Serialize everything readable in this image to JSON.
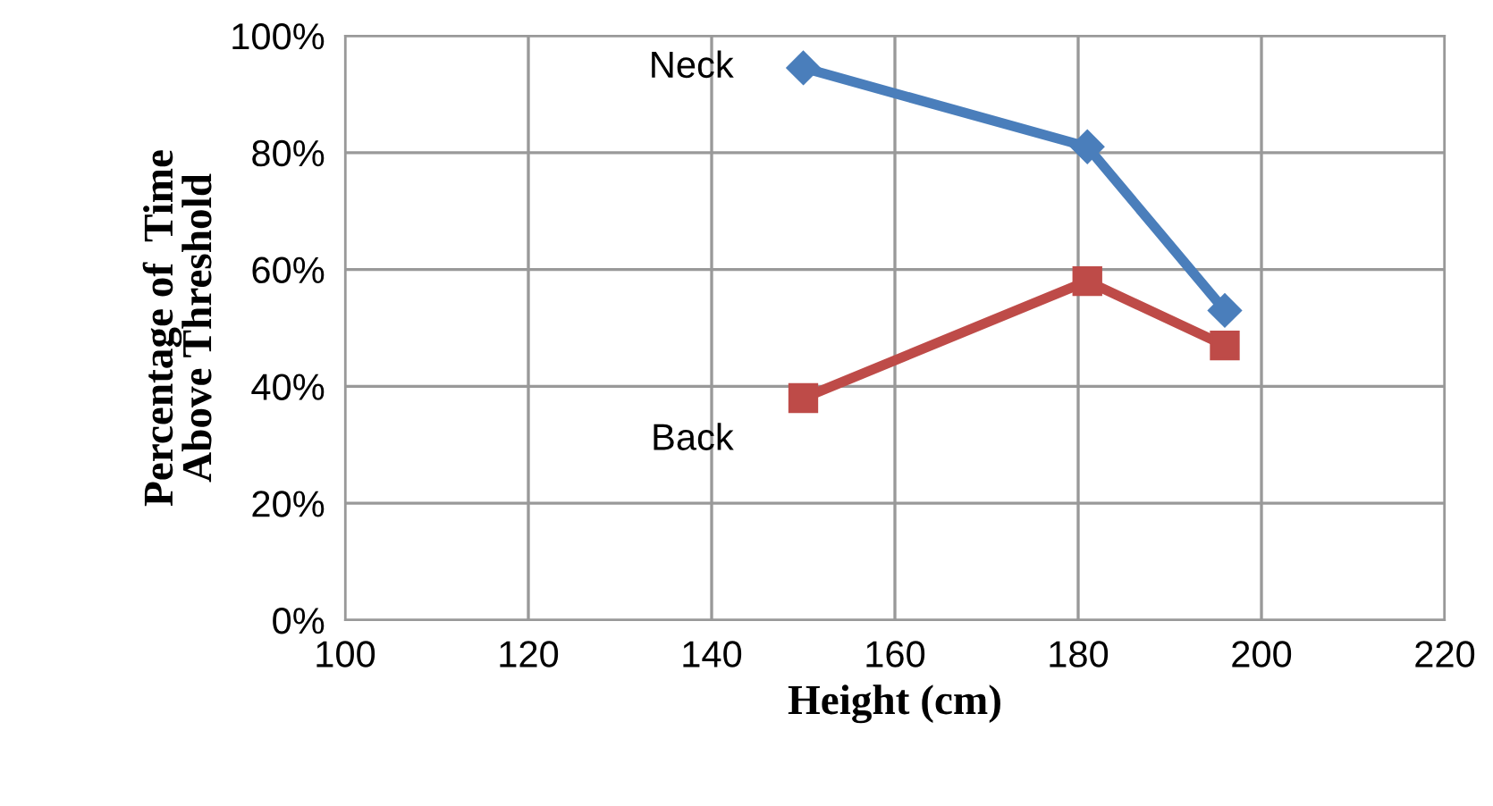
{
  "chart_data": {
    "type": "line",
    "xlabel": "Height (cm)",
    "ylabel": "Percentage of  Time\nAbove Threshold",
    "series": [
      {
        "name": "Neck",
        "color": "#4a7ebb",
        "marker": "diamond",
        "x": [
          150,
          181,
          196
        ],
        "values": [
          94.5,
          81,
          53
        ]
      },
      {
        "name": "Back",
        "color": "#be4b48",
        "marker": "square",
        "x": [
          150,
          181,
          196
        ],
        "values": [
          38,
          58,
          47
        ]
      }
    ],
    "xlim": [
      100,
      220
    ],
    "xticks": [
      100,
      120,
      140,
      160,
      180,
      200,
      220
    ],
    "ylim": [
      0,
      100
    ],
    "yticks": [
      {
        "value": 0,
        "label": "0%"
      },
      {
        "value": 20,
        "label": "20%"
      },
      {
        "value": 40,
        "label": "40%"
      },
      {
        "value": 60,
        "label": "60%"
      },
      {
        "value": 80,
        "label": "80%"
      },
      {
        "value": 100,
        "label": "100%"
      }
    ],
    "grid": true,
    "legend": false,
    "line_style": "solid"
  }
}
